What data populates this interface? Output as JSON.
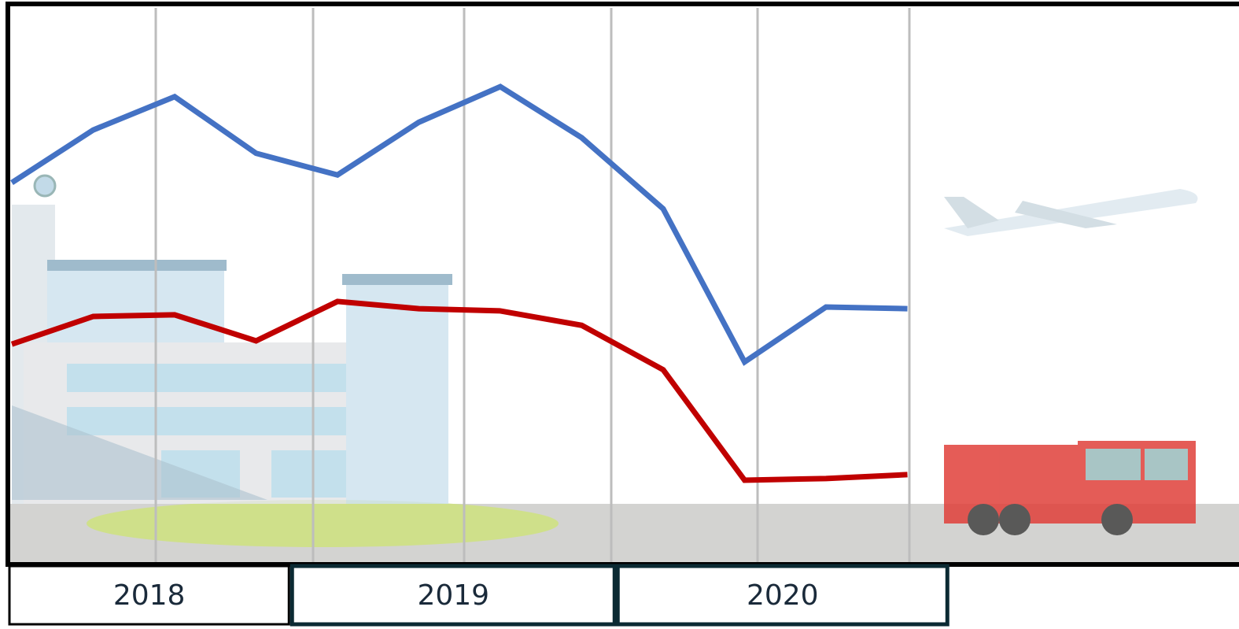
{
  "chart_data": {
    "type": "line",
    "categories": [
      null,
      null,
      null,
      null,
      null,
      null,
      null,
      null,
      null,
      null,
      null,
      null
    ],
    "year_labels": [
      "2018",
      "2019",
      "2020"
    ],
    "ylim": [
      0,
      100
    ],
    "series": [
      {
        "color": "#4472c4",
        "values": [
          68.5,
          78.0,
          84.0,
          73.8,
          69.9,
          79.4,
          85.8,
          76.6,
          63.8,
          36.2,
          46.1,
          45.8
        ]
      },
      {
        "color": "#c00000",
        "values": [
          39.4,
          44.4,
          44.7,
          40.0,
          47.1,
          45.8,
          45.4,
          42.8,
          34.8,
          14.9,
          15.2,
          15.9
        ]
      }
    ]
  }
}
